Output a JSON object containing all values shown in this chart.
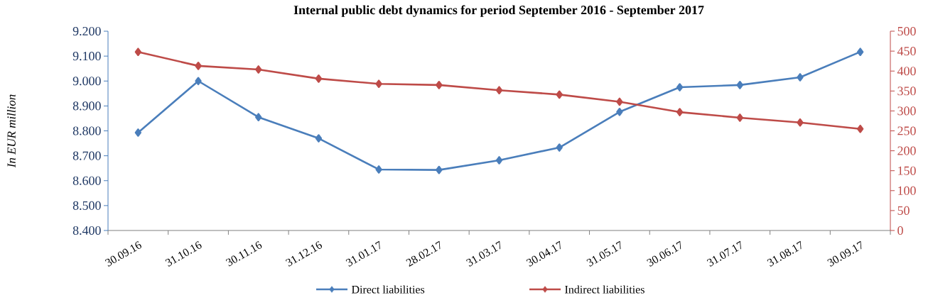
{
  "chart_data": {
    "type": "line",
    "title": "Internal public debt dynamics for period September 2016 - September 2017",
    "ylabel": "In EUR million",
    "categories": [
      "30.09.16",
      "31.10.16",
      "30.11.16",
      "31.12.16",
      "31.01.17",
      "28.02.17",
      "31.03.17",
      "30.04.17",
      "31.05.17",
      "30.06.17",
      "31.07.17",
      "31.08.17",
      "30.09.17"
    ],
    "series": [
      {
        "name": "Direct liabilities",
        "color": "#4a7ebb",
        "values": [
          8.793,
          9.0,
          8.855,
          8.77,
          8.645,
          8.643,
          8.682,
          8.733,
          8.876,
          8.975,
          8.984,
          9.015,
          9.117
        ]
      },
      {
        "name": "Indirect liabilities",
        "color": "#be4b48",
        "axis": "y2",
        "values": [
          448,
          413,
          404,
          381,
          368,
          365,
          352,
          341,
          323,
          297,
          283,
          271,
          255
        ]
      }
    ],
    "ylim": [
      8.4,
      9.2
    ],
    "yticks": [
      {
        "value": 8.4,
        "label": "8.400"
      },
      {
        "value": 8.5,
        "label": "8.500"
      },
      {
        "value": 8.6,
        "label": "8.600"
      },
      {
        "value": 8.7,
        "label": "8.700"
      },
      {
        "value": 8.8,
        "label": "8.800"
      },
      {
        "value": 8.9,
        "label": "8.900"
      },
      {
        "value": 9.0,
        "label": "9.000"
      },
      {
        "value": 9.1,
        "label": "9.100"
      },
      {
        "value": 9.2,
        "label": "9.200"
      }
    ],
    "y2lim": [
      0,
      500
    ],
    "y2ticks": [
      0,
      50,
      100,
      150,
      200,
      250,
      300,
      350,
      400,
      450,
      500
    ],
    "grid": false,
    "legend": "bottom",
    "marker": "diamond",
    "line_style": "solid"
  }
}
